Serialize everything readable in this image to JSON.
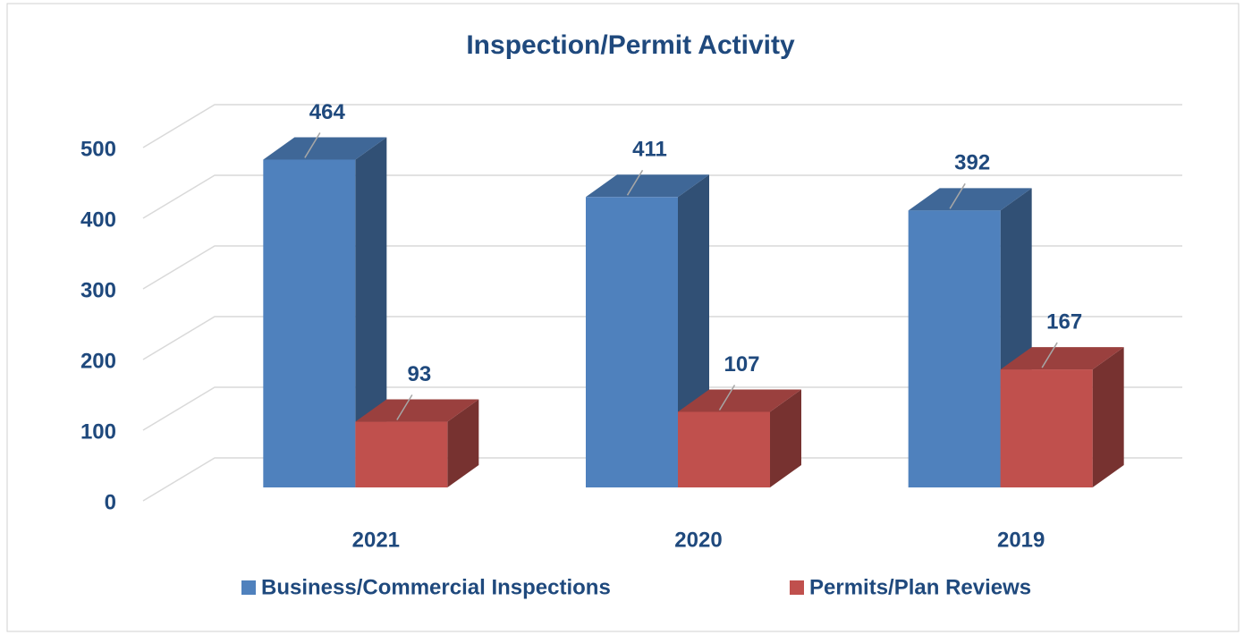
{
  "chart_data": {
    "type": "bar3d",
    "title": "Inspection/Permit Activity",
    "categories": [
      "2021",
      "2020",
      "2019"
    ],
    "series": [
      {
        "name": "Business/Commercial Inspections",
        "color": "#4f81bd",
        "values": [
          464,
          411,
          392
        ]
      },
      {
        "name": "Permits/Plan Reviews",
        "color": "#c0504d",
        "values": [
          93,
          107,
          167
        ]
      }
    ],
    "ylim": [
      0,
      500
    ],
    "yticks": [
      0,
      100,
      200,
      300,
      400,
      500
    ],
    "grid": true
  }
}
